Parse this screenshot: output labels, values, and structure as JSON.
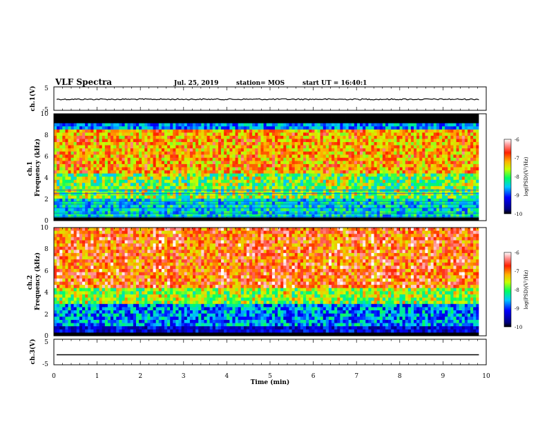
{
  "header": {
    "title": "VLF Spectra",
    "date": "Jul. 25, 2019",
    "station": "station= MOS",
    "start": "start UT = 16:40:1"
  },
  "chart_data": [
    {
      "type": "line",
      "name": "ch.1 waveform",
      "ylabel": "ch.1(V)",
      "ylim": [
        -5,
        5
      ],
      "yticks": [
        "5",
        "-5"
      ],
      "baseline": 0,
      "xlim": [
        0,
        10
      ]
    },
    {
      "type": "heatmap",
      "name": "ch.1 spectrogram",
      "ylabel": "ch.1\nFrequency (kHz)",
      "ylim": [
        0,
        10
      ],
      "yticks": [
        "0",
        "2",
        "4",
        "6",
        "8",
        "10"
      ],
      "xlim": [
        0,
        10
      ],
      "data_end_min": 9.83,
      "colorbar": {
        "label": "log(PSD)(V²/Hz)",
        "range": [
          -10,
          -6
        ],
        "ticks": [
          "-6",
          "-7",
          "-8",
          "-9",
          "-10"
        ]
      }
    },
    {
      "type": "heatmap",
      "name": "ch.2 spectrogram",
      "ylabel": "ch.2\nFrequency (kHz)",
      "ylim": [
        0,
        10
      ],
      "yticks": [
        "0",
        "2",
        "4",
        "6",
        "8",
        "10"
      ],
      "xlim": [
        0,
        10
      ],
      "data_end_min": 9.83,
      "colorbar": {
        "label": "log(PSD)(V²/Hz)",
        "range": [
          -10,
          -6
        ],
        "ticks": [
          "-6",
          "-7",
          "-8",
          "-9",
          "-10"
        ]
      }
    },
    {
      "type": "line",
      "name": "ch.3 waveform",
      "ylabel": "ch.3(V)",
      "ylim": [
        -5,
        5
      ],
      "yticks": [
        "5",
        "-5"
      ],
      "baseline": 0,
      "xlim": [
        0,
        10
      ]
    }
  ],
  "xaxis": {
    "label": "Time (min)",
    "ticks": [
      "0",
      "1",
      "2",
      "3",
      "4",
      "5",
      "6",
      "7",
      "8",
      "9",
      "10"
    ]
  }
}
